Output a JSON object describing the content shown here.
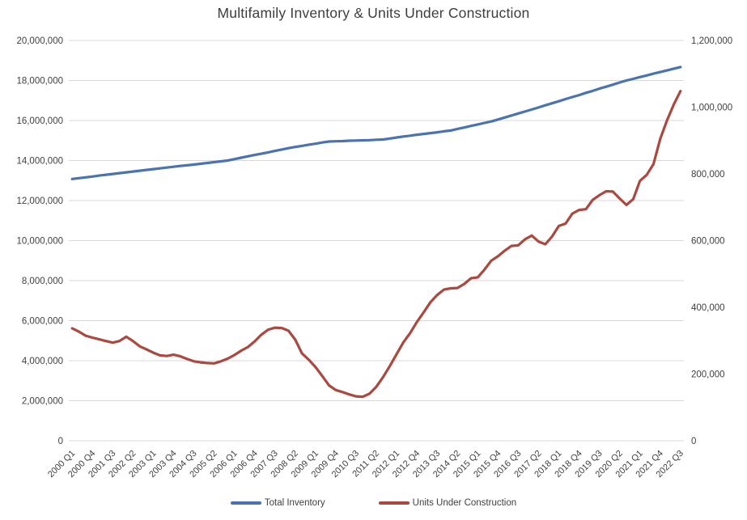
{
  "chart_data": {
    "type": "line",
    "title": "Multifamily Inventory & Units Under Construction",
    "grid": true,
    "legend_position": "bottom",
    "x_tick_every": 3,
    "categories": [
      "2000 Q1",
      "2000 Q2",
      "2000 Q3",
      "2000 Q4",
      "2001 Q1",
      "2001 Q2",
      "2001 Q3",
      "2001 Q4",
      "2002 Q1",
      "2002 Q2",
      "2002 Q3",
      "2002 Q4",
      "2003 Q1",
      "2003 Q2",
      "2003 Q3",
      "2003 Q4",
      "2004 Q1",
      "2004 Q2",
      "2004 Q3",
      "2004 Q4",
      "2005 Q1",
      "2005 Q2",
      "2005 Q3",
      "2005 Q4",
      "2006 Q1",
      "2006 Q2",
      "2006 Q3",
      "2006 Q4",
      "2007 Q1",
      "2007 Q2",
      "2007 Q3",
      "2007 Q4",
      "2008 Q1",
      "2008 Q2",
      "2008 Q3",
      "2008 Q4",
      "2009 Q1",
      "2009 Q2",
      "2009 Q3",
      "2009 Q4",
      "2010 Q1",
      "2010 Q2",
      "2010 Q3",
      "2010 Q4",
      "2011 Q1",
      "2011 Q2",
      "2011 Q3",
      "2011 Q4",
      "2012 Q1",
      "2012 Q2",
      "2012 Q3",
      "2012 Q4",
      "2013 Q1",
      "2013 Q2",
      "2013 Q3",
      "2013 Q4",
      "2014 Q1",
      "2014 Q2",
      "2014 Q3",
      "2014 Q4",
      "2015 Q1",
      "2015 Q2",
      "2015 Q3",
      "2015 Q4",
      "2016 Q1",
      "2016 Q2",
      "2016 Q3",
      "2016 Q4",
      "2017 Q1",
      "2017 Q2",
      "2017 Q3",
      "2017 Q4",
      "2018 Q1",
      "2018 Q2",
      "2018 Q3",
      "2018 Q4",
      "2019 Q1",
      "2019 Q2",
      "2019 Q3",
      "2019 Q4",
      "2020 Q1",
      "2020 Q2",
      "2020 Q3",
      "2020 Q4",
      "2021 Q1",
      "2021 Q2",
      "2021 Q3",
      "2021 Q4",
      "2022 Q1",
      "2022 Q2",
      "2022 Q3"
    ],
    "series": [
      {
        "name": "Total Inventory",
        "axis": "left",
        "color": "#4a73b0",
        "values": [
          13080000,
          13120000,
          13160000,
          13200000,
          13250000,
          13290000,
          13330000,
          13370000,
          13410000,
          13450000,
          13490000,
          13530000,
          13570000,
          13610000,
          13650000,
          13690000,
          13730000,
          13760000,
          13800000,
          13840000,
          13880000,
          13920000,
          13960000,
          14000000,
          14070000,
          14140000,
          14210000,
          14280000,
          14340000,
          14410000,
          14480000,
          14550000,
          14620000,
          14680000,
          14730000,
          14790000,
          14840000,
          14900000,
          14950000,
          14960000,
          14970000,
          14990000,
          15000000,
          15010000,
          15020000,
          15040000,
          15050000,
          15100000,
          15150000,
          15200000,
          15240000,
          15290000,
          15330000,
          15370000,
          15410000,
          15460000,
          15500000,
          15580000,
          15650000,
          15730000,
          15800000,
          15880000,
          15950000,
          16050000,
          16150000,
          16250000,
          16350000,
          16450000,
          16550000,
          16650000,
          16760000,
          16860000,
          16960000,
          17070000,
          17170000,
          17270000,
          17380000,
          17480000,
          17590000,
          17690000,
          17790000,
          17900000,
          18000000,
          18080000,
          18170000,
          18250000,
          18340000,
          18420000,
          18500000,
          18590000,
          18670000
        ]
      },
      {
        "name": "Units Under Construction",
        "axis": "right",
        "color": "#a9493f",
        "values": [
          337000,
          327000,
          315000,
          309000,
          304000,
          299000,
          294000,
          299000,
          312000,
          299000,
          283000,
          274000,
          264000,
          256000,
          254000,
          258000,
          253000,
          245000,
          238000,
          235000,
          233000,
          232000,
          238000,
          246000,
          257000,
          270000,
          281000,
          298000,
          318000,
          333000,
          339000,
          338000,
          330000,
          303000,
          262000,
          243000,
          221000,
          194000,
          166000,
          152000,
          146000,
          139000,
          133000,
          132000,
          141000,
          162000,
          191000,
          224000,
          260000,
          295000,
          323000,
          356000,
          385000,
          415000,
          437000,
          453000,
          457000,
          458000,
          470000,
          487000,
          490000,
          513000,
          540000,
          553000,
          570000,
          584000,
          586000,
          604000,
          615000,
          597000,
          589000,
          612000,
          644000,
          651000,
          681000,
          692000,
          694000,
          722000,
          736000,
          748000,
          747000,
          726000,
          707000,
          724000,
          779000,
          797000,
          829000,
          905000,
          960000,
          1008000,
          1048000
        ]
      }
    ],
    "left_axis": {
      "min": 0,
      "max": 20000000,
      "step": 2000000,
      "tick_labels": [
        "20,000,000",
        "18,000,000",
        "16,000,000",
        "14,000,000",
        "12,000,000",
        "10,000,000",
        "8,000,000",
        "6,000,000",
        "4,000,000",
        "2,000,000",
        "0"
      ]
    },
    "right_axis": {
      "min": 0,
      "max": 1200000,
      "step": 200000,
      "tick_labels": [
        "1,200,000",
        "1,000,000",
        "800,000",
        "600,000",
        "400,000",
        "200,000",
        "0"
      ]
    }
  },
  "colors": {
    "gridline": "#d9d9d9",
    "axis_text": "#404040",
    "title_text": "#3d3d3d",
    "background": "#ffffff"
  }
}
